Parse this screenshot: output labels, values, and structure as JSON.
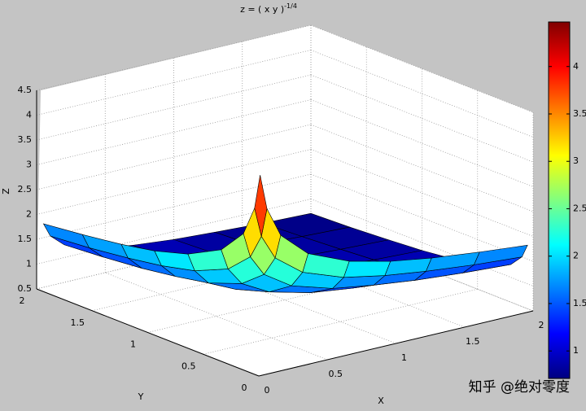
{
  "chart_data": {
    "type": "surface",
    "title": "z = ( x y )",
    "title_superscript": "-1/4",
    "xlabel": "X",
    "ylabel": "Y",
    "zlabel": "Z",
    "x": [
      0.05,
      0.1,
      0.2,
      0.4,
      0.7,
      1,
      1.3,
      1.65,
      2
    ],
    "y": [
      0.05,
      0.1,
      0.2,
      0.4,
      0.7,
      1,
      1.3,
      1.65,
      2
    ],
    "z": [
      [
        4.47,
        3.76,
        3.16,
        2.66,
        2.31,
        2.11,
        1.98,
        1.87,
        1.78
      ],
      [
        3.76,
        3.16,
        2.66,
        2.24,
        1.94,
        1.78,
        1.67,
        1.57,
        1.5
      ],
      [
        3.16,
        2.66,
        2.24,
        1.88,
        1.63,
        1.5,
        1.4,
        1.32,
        1.26
      ],
      [
        2.66,
        2.24,
        1.88,
        1.58,
        1.37,
        1.26,
        1.18,
        1.11,
        1.06
      ],
      [
        2.31,
        1.94,
        1.63,
        1.37,
        1.2,
        1.09,
        1.02,
        0.96,
        0.92
      ],
      [
        2.11,
        1.78,
        1.5,
        1.26,
        1.09,
        1,
        0.94,
        0.88,
        0.84
      ],
      [
        1.98,
        1.67,
        1.4,
        1.18,
        1.02,
        0.94,
        0.88,
        0.83,
        0.79
      ],
      [
        1.87,
        1.57,
        1.32,
        1.11,
        0.96,
        0.88,
        0.83,
        0.78,
        0.74
      ],
      [
        1.78,
        1.5,
        1.26,
        1.06,
        0.92,
        0.84,
        0.79,
        0.74,
        0.71
      ]
    ],
    "xlim": [
      0,
      2
    ],
    "ylim": [
      0,
      2
    ],
    "zlim": [
      0.5,
      4.5
    ],
    "xticks": [
      0,
      0.5,
      1,
      1.5,
      2
    ],
    "yticks": [
      0,
      0.5,
      1,
      1.5,
      2
    ],
    "zticks": [
      0.5,
      1,
      1.5,
      2,
      2.5,
      3,
      3.5,
      4,
      4.5
    ],
    "grid": true,
    "colormap": "jet",
    "colorbar": {
      "clim": [
        0.71,
        4.47
      ],
      "ticks": [
        1,
        1.5,
        2,
        2.5,
        3,
        3.5,
        4
      ]
    }
  },
  "watermark": "知乎 @绝对零度"
}
